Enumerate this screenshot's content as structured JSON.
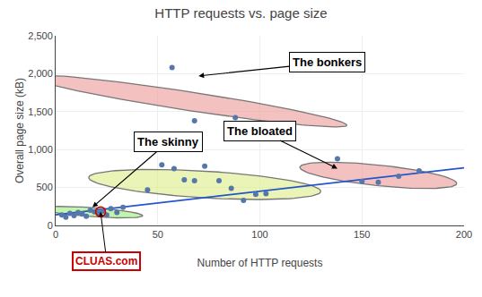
{
  "chart_data": {
    "type": "scatter",
    "title": "HTTP requests vs. page size",
    "x_label": "Number of HTTP requests",
    "y_label": "Overall page size (kB)",
    "xlim": [
      0,
      200
    ],
    "ylim": [
      0,
      2500
    ],
    "xticks": [
      0,
      50,
      100,
      150,
      200
    ],
    "yticks": [
      0,
      500,
      {
        "value": 1000,
        "label": "1,000"
      },
      {
        "value": 1500,
        "label": "1,500"
      },
      {
        "value": 2000,
        "label": "2,000"
      },
      {
        "value": 2500,
        "label": "2,500"
      }
    ],
    "grid": true,
    "regions": [
      {
        "cx": 18,
        "cy": 175,
        "width": 38,
        "height": 155,
        "angle": 12,
        "color": "#99ee77"
      },
      {
        "cx": 73,
        "cy": 540,
        "width": 100,
        "height": 400,
        "angle": 8,
        "color": "#ddee88"
      },
      {
        "cx": 65,
        "cy": 1640,
        "width": 55,
        "height": 700,
        "angle": 12,
        "color": "#ee9999"
      },
      {
        "cx": 158,
        "cy": 660,
        "width": 60,
        "height": 350,
        "angle": 8,
        "color": "#ee9999"
      }
    ],
    "series": [
      {
        "type": "line",
        "color": "#2255cc",
        "x": [
          0,
          200
        ],
        "values": [
          140,
          760
        ]
      },
      {
        "type": "scatter",
        "color": "#5577aa",
        "x": [
          3,
          5,
          7,
          9,
          11,
          13,
          15,
          17,
          19,
          21,
          23,
          25,
          27,
          30,
          33,
          45,
          52,
          58,
          63,
          68,
          73,
          80,
          86,
          92,
          98,
          103,
          57,
          68,
          88,
          138,
          150,
          158,
          168,
          178
        ],
        "values": [
          140,
          110,
          160,
          130,
          170,
          150,
          120,
          200,
          180,
          160,
          190,
          140,
          220,
          170,
          240,
          470,
          800,
          750,
          600,
          590,
          780,
          590,
          490,
          330,
          410,
          420,
          2080,
          1380,
          1420,
          880,
          580,
          570,
          650,
          720
        ]
      }
    ],
    "highlight": {
      "x": 22,
      "y": 180,
      "color": "#cc0000",
      "label": "CLUAS.com",
      "label_color": "#cc0000",
      "label_x": 25
    },
    "annotations": [
      {
        "text": "The skinny",
        "x": 18,
        "y": 240,
        "text_x": 55,
        "text_y": 1100
      },
      {
        "text": "The bonkers",
        "x": 70,
        "y": 1970,
        "text_x": 133,
        "text_y": 2150
      },
      {
        "text": "The bloated",
        "x": 138,
        "y": 750,
        "text_x": 100,
        "text_y": 1250
      }
    ]
  }
}
